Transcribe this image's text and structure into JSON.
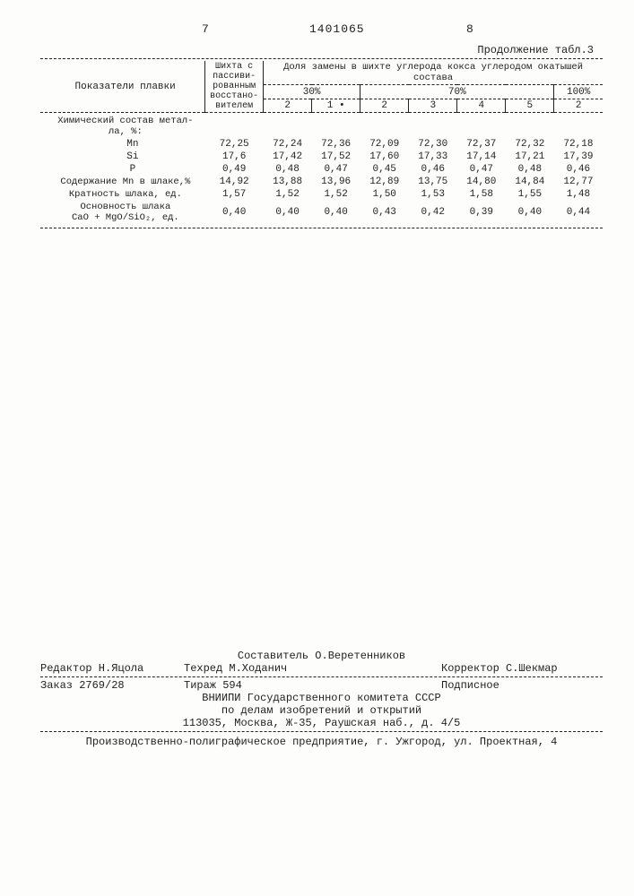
{
  "header": {
    "page_left": "7",
    "patent_id": "1401065",
    "page_right": "8",
    "continuation": "Продолжение табл.3"
  },
  "table": {
    "head": {
      "col_indicator": "Показатели плавки",
      "col_base": "Шихта с пассиви-рованным восстано-вителем",
      "col_group_top": "Доля замены в шихте углерода кокса углеродом окатышей состава",
      "pct30": "30%",
      "pct70": "70%",
      "pct100": "100%",
      "sub": [
        "2",
        "1 •",
        "2",
        "3",
        "4",
        "5",
        "2"
      ]
    },
    "rows": [
      {
        "label": "Химический состав метал-\nла, %:",
        "vals": [
          "",
          "",
          "",
          "",
          "",
          "",
          "",
          ""
        ],
        "cls": "section"
      },
      {
        "label": "Mn",
        "vals": [
          "72,25",
          "72,24",
          "72,36",
          "72,09",
          "72,30",
          "72,37",
          "72,32",
          "72,18"
        ],
        "cls": "mono"
      },
      {
        "label": "Si",
        "vals": [
          "17,6",
          "17,42",
          "17,52",
          "17,60",
          "17,33",
          "17,14",
          "17,21",
          "17,39"
        ],
        "cls": "mono"
      },
      {
        "label": "P",
        "vals": [
          "0,49",
          "0,48",
          "0,47",
          "0,45",
          "0,46",
          "0,47",
          "0,48",
          "0,46"
        ],
        "cls": "mono"
      },
      {
        "label": "Содержание Mn в шлаке,%",
        "vals": [
          "14,92",
          "13,88",
          "13,96",
          "12,89",
          "13,75",
          "14,80",
          "14,84",
          "12,77"
        ],
        "cls": ""
      },
      {
        "label": "Кратность шлака, ед.",
        "vals": [
          "1,57",
          "1,52",
          "1,52",
          "1,50",
          "1,53",
          "1,58",
          "1,55",
          "1,48"
        ],
        "cls": ""
      },
      {
        "label": "Основность шлака\nCaO + MgO/SiO₂, ед.",
        "vals": [
          "0,40",
          "0,40",
          "0,40",
          "0,43",
          "0,42",
          "0,39",
          "0,40",
          "0,44"
        ],
        "cls": ""
      }
    ]
  },
  "credits": {
    "compiler": "Составитель О.Веретенников",
    "editor": "Редактор Н.Яцола",
    "techred": "Техред М.Ходанич",
    "corrector": "Корректор С.Шекмар",
    "order": "Заказ 2769/28",
    "tirage": "Тираж 594",
    "subscr": "Подписное",
    "org1": "ВНИИПИ Государственного комитета СССР",
    "org2": "по делам изобретений и открытий",
    "addr": "113035, Москва, Ж-35, Раушская наб., д. 4/5",
    "printer": "Производственно-полиграфическое предприятие, г. Ужгород, ул. Проектная, 4"
  }
}
